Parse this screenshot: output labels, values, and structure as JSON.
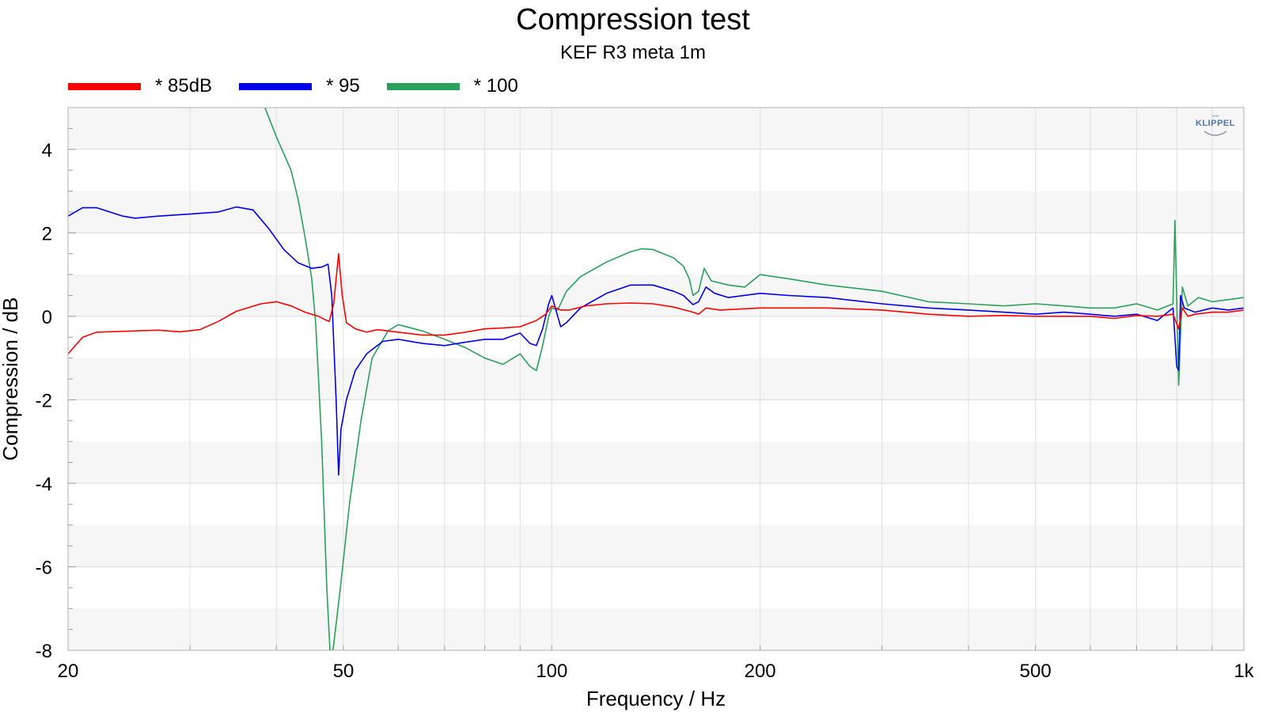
{
  "chart_data": {
    "type": "line",
    "title": "Compression test",
    "subtitle": "KEF R3 meta 1m",
    "xlabel": "Frequency / Hz",
    "ylabel": "Compression / dB",
    "xscale": "log",
    "xlim": [
      20,
      1000
    ],
    "ylim": [
      -8,
      5
    ],
    "x_ticks": [
      {
        "value": 20,
        "label": "20"
      },
      {
        "value": 50,
        "label": "50"
      },
      {
        "value": 100,
        "label": "100"
      },
      {
        "value": 200,
        "label": "200"
      },
      {
        "value": 500,
        "label": "500"
      },
      {
        "value": 1000,
        "label": "1k"
      }
    ],
    "y_ticks": [
      {
        "value": 4,
        "label": "4"
      },
      {
        "value": 2,
        "label": "2"
      },
      {
        "value": 0,
        "label": "0"
      },
      {
        "value": -2,
        "label": "-2"
      },
      {
        "value": -4,
        "label": "-4"
      },
      {
        "value": -6,
        "label": "-6"
      },
      {
        "value": -8,
        "label": "-8"
      }
    ],
    "grid": true,
    "legend_position": "top-left",
    "logo": "KLIPPEL",
    "series": [
      {
        "name": "* 85dB",
        "color": "#ff0000",
        "points": [
          [
            20,
            -0.9
          ],
          [
            21,
            -0.5
          ],
          [
            22,
            -0.38
          ],
          [
            24,
            -0.36
          ],
          [
            27,
            -0.33
          ],
          [
            29,
            -0.37
          ],
          [
            31,
            -0.32
          ],
          [
            33,
            -0.12
          ],
          [
            35,
            0.12
          ],
          [
            38,
            0.3
          ],
          [
            40,
            0.35
          ],
          [
            42,
            0.25
          ],
          [
            44,
            0.1
          ],
          [
            46,
            0.0
          ],
          [
            47,
            -0.08
          ],
          [
            47.7,
            -0.12
          ],
          [
            48.4,
            0.3
          ],
          [
            49.2,
            1.5
          ],
          [
            49.8,
            0.5
          ],
          [
            50.5,
            -0.15
          ],
          [
            52,
            -0.3
          ],
          [
            54,
            -0.38
          ],
          [
            56,
            -0.32
          ],
          [
            60,
            -0.38
          ],
          [
            65,
            -0.45
          ],
          [
            70,
            -0.45
          ],
          [
            75,
            -0.38
          ],
          [
            80,
            -0.3
          ],
          [
            85,
            -0.28
          ],
          [
            90,
            -0.25
          ],
          [
            95,
            -0.1
          ],
          [
            98,
            0.05
          ],
          [
            100,
            0.25
          ],
          [
            103,
            0.15
          ],
          [
            106,
            0.15
          ],
          [
            112,
            0.25
          ],
          [
            120,
            0.3
          ],
          [
            130,
            0.32
          ],
          [
            140,
            0.3
          ],
          [
            150,
            0.22
          ],
          [
            160,
            0.1
          ],
          [
            163,
            0.05
          ],
          [
            167,
            0.2
          ],
          [
            175,
            0.15
          ],
          [
            190,
            0.18
          ],
          [
            200,
            0.2
          ],
          [
            250,
            0.2
          ],
          [
            300,
            0.15
          ],
          [
            350,
            0.05
          ],
          [
            400,
            0.0
          ],
          [
            450,
            0.02
          ],
          [
            500,
            0.0
          ],
          [
            550,
            0.0
          ],
          [
            600,
            0.0
          ],
          [
            650,
            -0.05
          ],
          [
            700,
            0.02
          ],
          [
            750,
            0.0
          ],
          [
            790,
            0.05
          ],
          [
            805,
            -0.3
          ],
          [
            815,
            0.2
          ],
          [
            830,
            0.0
          ],
          [
            850,
            0.05
          ],
          [
            900,
            0.1
          ],
          [
            950,
            0.1
          ],
          [
            1000,
            0.15
          ]
        ]
      },
      {
        "name": "* 95",
        "color": "#0000ee",
        "points": [
          [
            20,
            2.4
          ],
          [
            21,
            2.6
          ],
          [
            22,
            2.6
          ],
          [
            24,
            2.4
          ],
          [
            25,
            2.35
          ],
          [
            27,
            2.4
          ],
          [
            30,
            2.45
          ],
          [
            33,
            2.5
          ],
          [
            35,
            2.62
          ],
          [
            37,
            2.55
          ],
          [
            39,
            2.1
          ],
          [
            41,
            1.6
          ],
          [
            43,
            1.28
          ],
          [
            45,
            1.15
          ],
          [
            46.5,
            1.18
          ],
          [
            47.5,
            1.25
          ],
          [
            48.1,
            0.5
          ],
          [
            48.8,
            -2.0
          ],
          [
            49.2,
            -3.8
          ],
          [
            49.6,
            -2.7
          ],
          [
            50.5,
            -2.0
          ],
          [
            52,
            -1.3
          ],
          [
            54,
            -0.9
          ],
          [
            57,
            -0.6
          ],
          [
            60,
            -0.55
          ],
          [
            65,
            -0.65
          ],
          [
            70,
            -0.7
          ],
          [
            75,
            -0.62
          ],
          [
            80,
            -0.55
          ],
          [
            85,
            -0.55
          ],
          [
            90,
            -0.4
          ],
          [
            93,
            -0.65
          ],
          [
            95,
            -0.7
          ],
          [
            97,
            -0.3
          ],
          [
            99,
            0.3
          ],
          [
            100,
            0.5
          ],
          [
            101,
            0.25
          ],
          [
            103,
            -0.25
          ],
          [
            105,
            -0.15
          ],
          [
            110,
            0.2
          ],
          [
            120,
            0.55
          ],
          [
            130,
            0.75
          ],
          [
            140,
            0.75
          ],
          [
            150,
            0.6
          ],
          [
            155,
            0.5
          ],
          [
            160,
            0.28
          ],
          [
            163,
            0.35
          ],
          [
            167,
            0.7
          ],
          [
            172,
            0.55
          ],
          [
            180,
            0.45
          ],
          [
            200,
            0.55
          ],
          [
            220,
            0.5
          ],
          [
            250,
            0.45
          ],
          [
            300,
            0.3
          ],
          [
            350,
            0.2
          ],
          [
            400,
            0.15
          ],
          [
            450,
            0.1
          ],
          [
            500,
            0.05
          ],
          [
            550,
            0.1
          ],
          [
            600,
            0.05
          ],
          [
            650,
            0.0
          ],
          [
            700,
            0.05
          ],
          [
            750,
            -0.1
          ],
          [
            790,
            0.2
          ],
          [
            800,
            -1.2
          ],
          [
            805,
            -1.3
          ],
          [
            810,
            0.5
          ],
          [
            820,
            0.2
          ],
          [
            850,
            0.1
          ],
          [
            900,
            0.2
          ],
          [
            950,
            0.15
          ],
          [
            1000,
            0.2
          ]
        ]
      },
      {
        "name": "* 100",
        "color": "#2aa05a",
        "points": [
          [
            38.5,
            5.0
          ],
          [
            40,
            4.3
          ],
          [
            42,
            3.5
          ],
          [
            43,
            2.8
          ],
          [
            44,
            1.9
          ],
          [
            45,
            0.9
          ],
          [
            45.6,
            -0.2
          ],
          [
            46.5,
            -3.0
          ],
          [
            47.3,
            -6.5
          ],
          [
            47.8,
            -8.0
          ],
          [
            48.3,
            -8.0
          ],
          [
            49.5,
            -6.5
          ],
          [
            51,
            -4.5
          ],
          [
            53,
            -2.5
          ],
          [
            55,
            -1.0
          ],
          [
            58,
            -0.35
          ],
          [
            60,
            -0.2
          ],
          [
            65,
            -0.35
          ],
          [
            70,
            -0.55
          ],
          [
            75,
            -0.75
          ],
          [
            80,
            -1.0
          ],
          [
            85,
            -1.15
          ],
          [
            88,
            -1.0
          ],
          [
            90,
            -0.9
          ],
          [
            93,
            -1.2
          ],
          [
            95,
            -1.3
          ],
          [
            97,
            -0.7
          ],
          [
            99,
            0.0
          ],
          [
            100,
            0.2
          ],
          [
            102,
            0.15
          ],
          [
            105,
            0.6
          ],
          [
            110,
            0.95
          ],
          [
            120,
            1.3
          ],
          [
            130,
            1.55
          ],
          [
            135,
            1.62
          ],
          [
            140,
            1.6
          ],
          [
            150,
            1.4
          ],
          [
            155,
            1.2
          ],
          [
            158,
            0.9
          ],
          [
            160,
            0.5
          ],
          [
            163,
            0.6
          ],
          [
            166,
            1.15
          ],
          [
            170,
            0.85
          ],
          [
            180,
            0.75
          ],
          [
            190,
            0.7
          ],
          [
            200,
            1.0
          ],
          [
            220,
            0.9
          ],
          [
            250,
            0.75
          ],
          [
            300,
            0.6
          ],
          [
            350,
            0.35
          ],
          [
            400,
            0.3
          ],
          [
            450,
            0.25
          ],
          [
            500,
            0.3
          ],
          [
            550,
            0.25
          ],
          [
            600,
            0.2
          ],
          [
            650,
            0.2
          ],
          [
            700,
            0.3
          ],
          [
            750,
            0.15
          ],
          [
            790,
            0.3
          ],
          [
            795,
            2.3
          ],
          [
            805,
            -1.65
          ],
          [
            815,
            0.7
          ],
          [
            830,
            0.25
          ],
          [
            860,
            0.45
          ],
          [
            900,
            0.35
          ],
          [
            950,
            0.4
          ],
          [
            1000,
            0.45
          ]
        ]
      }
    ]
  }
}
